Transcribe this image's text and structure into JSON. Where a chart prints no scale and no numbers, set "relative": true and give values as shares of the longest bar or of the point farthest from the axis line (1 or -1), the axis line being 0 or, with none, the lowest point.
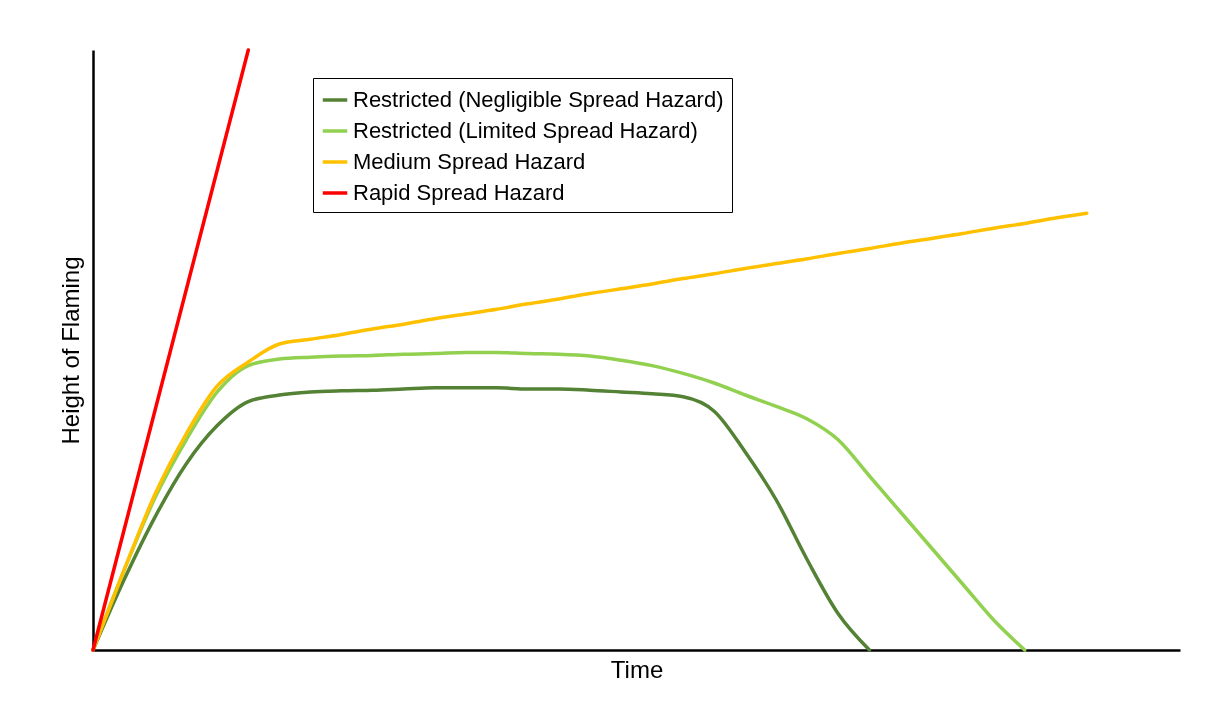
{
  "chart_data": {
    "type": "line",
    "relative": true,
    "xlabel": "Time",
    "ylabel": "Height of Flaming",
    "legend": "top",
    "grid": false,
    "marker": "none",
    "line_style": "solid",
    "categories": [
      null,
      null,
      null,
      null,
      null,
      null,
      null,
      null,
      null,
      null,
      null,
      null,
      null,
      null,
      null,
      null,
      null,
      null,
      null,
      null,
      null,
      null,
      null,
      null,
      null,
      null,
      null,
      null,
      null,
      null,
      null,
      null,
      null,
      null,
      null,
      null
    ],
    "series": [
      {
        "name": "Restricted (Negligible Spread Hazard)",
        "color": "#548235",
        "values": [
          0,
          0.117,
          0.222,
          0.31,
          0.374,
          0.414,
          0.425,
          0.43,
          0.432,
          0.433,
          0.435,
          0.437,
          0.437,
          0.437,
          0.435,
          0.435,
          0.433,
          0.43,
          0.427,
          0.422,
          0.398,
          0.33,
          0.25,
          0.15,
          0.06,
          0,
          null,
          null,
          null,
          null,
          null,
          null,
          null,
          null,
          null,
          null
        ]
      },
      {
        "name": "Restricted (Limited Spread Hazard)",
        "color": "#92d050",
        "values": [
          0,
          0.133,
          0.254,
          0.35,
          0.43,
          0.474,
          0.485,
          0.488,
          0.49,
          0.491,
          0.493,
          0.494,
          0.496,
          0.496,
          0.494,
          0.493,
          0.49,
          0.483,
          0.474,
          0.461,
          0.445,
          0.425,
          0.406,
          0.385,
          0.35,
          0.29,
          0.23,
          0.17,
          0.11,
          0.05,
          0,
          null,
          null,
          null,
          null,
          null
        ]
      },
      {
        "name": "Medium Spread Hazard",
        "color": "#ffc000",
        "values": [
          0,
          0.133,
          0.26,
          0.36,
          0.44,
          0.48,
          0.51,
          0.518,
          0.526,
          0.535,
          0.543,
          0.552,
          0.56,
          0.568,
          0.577,
          0.585,
          0.594,
          0.602,
          0.61,
          0.619,
          0.627,
          0.636,
          0.644,
          0.652,
          0.661,
          0.669,
          0.678,
          0.686,
          0.694,
          0.703,
          0.711,
          0.72,
          0.728,
          null,
          null,
          null
        ]
      },
      {
        "name": "Rapid Spread Hazard",
        "color": "#ff0000",
        "values": [
          0,
          0.2,
          0.4,
          0.6,
          0.8,
          1,
          null,
          null,
          null,
          null,
          null,
          null,
          null,
          null,
          null,
          null,
          null,
          null,
          null,
          null,
          null,
          null,
          null,
          null,
          null,
          null,
          null,
          null,
          null,
          null,
          null,
          null,
          null,
          null,
          null,
          null
        ]
      }
    ]
  }
}
